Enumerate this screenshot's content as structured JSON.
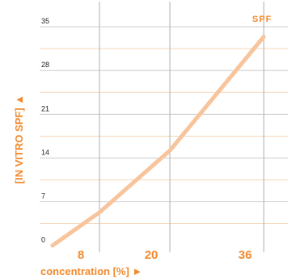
{
  "chart_data": {
    "type": "line",
    "title": "",
    "xlabel": "concentration [%] ►",
    "ylabel": "[IN VITRO SPF] ▲",
    "x_ticks": [
      {
        "value": 8,
        "label": "8"
      },
      {
        "value": 20,
        "label": "20"
      },
      {
        "value": 36,
        "label": "36"
      }
    ],
    "y_ticks": [
      {
        "value": 0,
        "label": "0"
      },
      {
        "value": 7,
        "label": "7"
      },
      {
        "value": 14,
        "label": "14"
      },
      {
        "value": 21,
        "label": "21"
      },
      {
        "value": 28,
        "label": "28"
      },
      {
        "value": 35,
        "label": "35"
      }
    ],
    "xlim": [
      -2.2,
      41.5
    ],
    "ylim": [
      -0.7,
      36.7
    ],
    "grid": {
      "horizontal": [
        3.5,
        7,
        10.5,
        14,
        17.5,
        21,
        24.5,
        28,
        31.5,
        35
      ],
      "vertical": [
        8,
        20,
        36
      ],
      "horizontal_color": "#f5d6b8",
      "horizontal_strong_color": "#cccccc",
      "vertical_color": "#bbbbbb"
    },
    "series": [
      {
        "name": "SPF",
        "color": "#f8c49c",
        "x": [
          0,
          8,
          20,
          36
        ],
        "y": [
          0,
          5.3,
          15.2,
          33.4
        ]
      }
    ],
    "accent_color": "#f28a2e"
  }
}
